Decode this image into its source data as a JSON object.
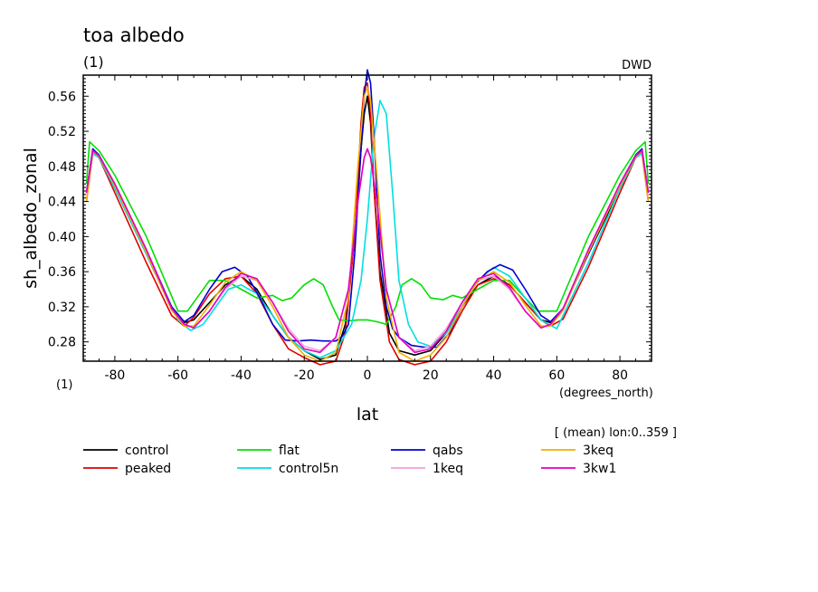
{
  "chart_data": {
    "type": "line",
    "title": "toa albedo",
    "subtitle": "(1)",
    "source_label": "DWD",
    "xlabel": "lat",
    "ylabel": "sh_albedo_zonal",
    "x_units": "(degrees_north)",
    "y_units": "(1)",
    "averaging_note": "[ (mean) lon:0..359 ]",
    "xlim": [
      -90,
      90
    ],
    "ylim": [
      0.258,
      0.584
    ],
    "x_ticks": [
      -80,
      -60,
      -40,
      -20,
      0,
      20,
      40,
      60,
      80
    ],
    "x_tick_labels": [
      "-80",
      "-60",
      "-40",
      "-20",
      "0",
      "20",
      "40",
      "60",
      "80"
    ],
    "y_ticks": [
      0.28,
      0.32,
      0.36,
      0.4,
      0.44,
      0.48,
      0.52,
      0.56
    ],
    "y_tick_labels": [
      "0.28",
      "0.32",
      "0.36",
      "0.40",
      "0.44",
      "0.48",
      "0.52",
      "0.56"
    ],
    "grid": false,
    "legend_position": "bottom",
    "series": [
      {
        "name": "control",
        "color": "#000000",
        "x": [
          -89,
          -87,
          -85,
          -80,
          -70,
          -62,
          -58,
          -55,
          -50,
          -45,
          -40,
          -35,
          -30,
          -25,
          -20,
          -15,
          -10,
          -7,
          -4,
          -2,
          -1,
          0,
          1,
          2,
          4,
          7,
          10,
          15,
          20,
          25,
          30,
          35,
          40,
          45,
          50,
          55,
          58,
          62,
          70,
          80,
          85,
          87,
          89
        ],
        "y": [
          0.45,
          0.495,
          0.49,
          0.455,
          0.38,
          0.318,
          0.302,
          0.305,
          0.325,
          0.345,
          0.355,
          0.34,
          0.31,
          0.285,
          0.27,
          0.26,
          0.265,
          0.3,
          0.4,
          0.5,
          0.54,
          0.56,
          0.53,
          0.46,
          0.36,
          0.29,
          0.27,
          0.265,
          0.27,
          0.29,
          0.32,
          0.345,
          0.355,
          0.345,
          0.325,
          0.305,
          0.302,
          0.318,
          0.38,
          0.455,
          0.49,
          0.495,
          0.45
        ]
      },
      {
        "name": "peaked",
        "color": "#e00000",
        "x": [
          -89,
          -87,
          -85,
          -80,
          -70,
          -62,
          -58,
          -55,
          -50,
          -45,
          -40,
          -35,
          -30,
          -25,
          -20,
          -15,
          -10,
          -7,
          -4,
          -2,
          -1,
          0,
          1,
          2,
          4,
          7,
          10,
          15,
          20,
          25,
          30,
          35,
          40,
          45,
          50,
          55,
          58,
          62,
          70,
          80,
          85,
          87,
          89
        ],
        "y": [
          0.44,
          0.495,
          0.49,
          0.45,
          0.37,
          0.31,
          0.298,
          0.308,
          0.335,
          0.352,
          0.355,
          0.335,
          0.3,
          0.272,
          0.262,
          0.254,
          0.258,
          0.29,
          0.4,
          0.53,
          0.57,
          0.575,
          0.54,
          0.46,
          0.35,
          0.28,
          0.26,
          0.254,
          0.258,
          0.28,
          0.315,
          0.345,
          0.352,
          0.345,
          0.325,
          0.305,
          0.298,
          0.306,
          0.365,
          0.45,
          0.49,
          0.495,
          0.44
        ]
      },
      {
        "name": "flat",
        "color": "#00e000",
        "x": [
          -89,
          -88,
          -85,
          -80,
          -70,
          -60,
          -57,
          -54,
          -50,
          -45,
          -40,
          -35,
          -30,
          -27,
          -24,
          -20,
          -17,
          -14,
          -11,
          -9,
          -6,
          -3,
          0,
          3,
          6,
          9,
          11,
          14,
          17,
          20,
          24,
          27,
          30,
          35,
          40,
          45,
          50,
          54,
          57,
          60,
          70,
          80,
          85,
          88,
          89
        ],
        "y": [
          0.46,
          0.508,
          0.498,
          0.47,
          0.4,
          0.315,
          0.315,
          0.33,
          0.35,
          0.35,
          0.34,
          0.33,
          0.333,
          0.327,
          0.33,
          0.345,
          0.352,
          0.345,
          0.32,
          0.305,
          0.304,
          0.305,
          0.305,
          0.303,
          0.3,
          0.32,
          0.345,
          0.352,
          0.345,
          0.33,
          0.328,
          0.333,
          0.33,
          0.34,
          0.35,
          0.35,
          0.33,
          0.315,
          0.315,
          0.315,
          0.4,
          0.47,
          0.498,
          0.508,
          0.46
        ]
      },
      {
        "name": "control5n",
        "color": "#00e0e0",
        "x": [
          -89,
          -87,
          -85,
          -80,
          -70,
          -60,
          -56,
          -52,
          -48,
          -44,
          -40,
          -35,
          -30,
          -25,
          -20,
          -15,
          -10,
          -5,
          -2,
          0,
          2,
          4,
          6,
          8,
          10,
          13,
          16,
          20,
          25,
          30,
          35,
          40,
          45,
          50,
          55,
          60,
          70,
          80,
          85,
          87,
          89
        ],
        "y": [
          0.45,
          0.495,
          0.49,
          0.455,
          0.38,
          0.305,
          0.293,
          0.3,
          0.32,
          0.34,
          0.345,
          0.335,
          0.31,
          0.285,
          0.27,
          0.262,
          0.27,
          0.3,
          0.35,
          0.42,
          0.51,
          0.555,
          0.54,
          0.45,
          0.35,
          0.3,
          0.28,
          0.275,
          0.29,
          0.32,
          0.35,
          0.365,
          0.355,
          0.33,
          0.305,
          0.295,
          0.37,
          0.455,
          0.49,
          0.495,
          0.45
        ]
      },
      {
        "name": "qabs",
        "color": "#0000d0",
        "x": [
          -89,
          -87,
          -85,
          -80,
          -70,
          -62,
          -58,
          -55,
          -50,
          -46,
          -42,
          -38,
          -34,
          -30,
          -26,
          -22,
          -18,
          -14,
          -10,
          -8,
          -6,
          -4,
          -2,
          -1,
          0,
          1,
          2,
          4,
          6,
          8,
          10,
          14,
          18,
          22,
          26,
          30,
          34,
          38,
          42,
          46,
          50,
          55,
          58,
          62,
          70,
          80,
          85,
          87,
          89
        ],
        "y": [
          0.45,
          0.5,
          0.493,
          0.46,
          0.385,
          0.32,
          0.303,
          0.31,
          0.34,
          0.36,
          0.365,
          0.355,
          0.33,
          0.3,
          0.282,
          0.281,
          0.282,
          0.281,
          0.281,
          0.286,
          0.3,
          0.38,
          0.5,
          0.56,
          0.59,
          0.575,
          0.52,
          0.38,
          0.32,
          0.295,
          0.285,
          0.276,
          0.274,
          0.274,
          0.29,
          0.32,
          0.345,
          0.36,
          0.368,
          0.362,
          0.34,
          0.31,
          0.303,
          0.318,
          0.38,
          0.46,
          0.493,
          0.5,
          0.45
        ]
      },
      {
        "name": "1keq",
        "color": "#f0a0d8",
        "x": [
          -89,
          -87,
          -85,
          -80,
          -70,
          -62,
          -58,
          -55,
          -50,
          -45,
          -40,
          -35,
          -30,
          -25,
          -20,
          -15,
          -10,
          -6,
          -3,
          -1,
          0,
          1,
          3,
          6,
          10,
          15,
          20,
          25,
          30,
          35,
          40,
          45,
          50,
          55,
          58,
          62,
          70,
          80,
          85,
          87,
          89
        ],
        "y": [
          0.45,
          0.498,
          0.492,
          0.46,
          0.385,
          0.318,
          0.3,
          0.296,
          0.315,
          0.34,
          0.355,
          0.35,
          0.325,
          0.295,
          0.275,
          0.27,
          0.285,
          0.34,
          0.44,
          0.49,
          0.5,
          0.49,
          0.44,
          0.34,
          0.285,
          0.27,
          0.275,
          0.295,
          0.325,
          0.35,
          0.355,
          0.34,
          0.315,
          0.296,
          0.3,
          0.318,
          0.385,
          0.46,
          0.492,
          0.498,
          0.45
        ]
      },
      {
        "name": "3keq",
        "color": "#f0b000",
        "x": [
          -89,
          -87,
          -85,
          -80,
          -70,
          -62,
          -58,
          -55,
          -50,
          -45,
          -40,
          -35,
          -30,
          -25,
          -20,
          -15,
          -10,
          -6,
          -3,
          -1,
          0,
          1,
          3,
          6,
          10,
          15,
          20,
          25,
          30,
          35,
          40,
          45,
          50,
          55,
          58,
          62,
          70,
          80,
          85,
          87,
          89
        ],
        "y": [
          0.44,
          0.497,
          0.491,
          0.458,
          0.382,
          0.316,
          0.298,
          0.298,
          0.322,
          0.348,
          0.36,
          0.35,
          0.32,
          0.285,
          0.265,
          0.258,
          0.268,
          0.33,
          0.48,
          0.56,
          0.57,
          0.555,
          0.47,
          0.33,
          0.268,
          0.258,
          0.265,
          0.285,
          0.32,
          0.35,
          0.36,
          0.348,
          0.322,
          0.298,
          0.298,
          0.316,
          0.382,
          0.458,
          0.491,
          0.497,
          0.44
        ]
      },
      {
        "name": "3kw1",
        "color": "#e000c0",
        "x": [
          -89,
          -87,
          -85,
          -80,
          -70,
          -62,
          -58,
          -55,
          -50,
          -45,
          -40,
          -35,
          -30,
          -25,
          -20,
          -15,
          -10,
          -6,
          -3,
          -1,
          0,
          1,
          3,
          6,
          10,
          15,
          20,
          25,
          30,
          35,
          40,
          45,
          50,
          55,
          58,
          62,
          70,
          80,
          85,
          87,
          89
        ],
        "y": [
          0.45,
          0.498,
          0.492,
          0.46,
          0.385,
          0.318,
          0.3,
          0.296,
          0.315,
          0.342,
          0.358,
          0.352,
          0.325,
          0.292,
          0.272,
          0.268,
          0.285,
          0.34,
          0.44,
          0.49,
          0.5,
          0.49,
          0.44,
          0.34,
          0.285,
          0.268,
          0.272,
          0.292,
          0.325,
          0.352,
          0.358,
          0.342,
          0.315,
          0.296,
          0.3,
          0.318,
          0.385,
          0.46,
          0.492,
          0.498,
          0.45
        ]
      }
    ]
  }
}
